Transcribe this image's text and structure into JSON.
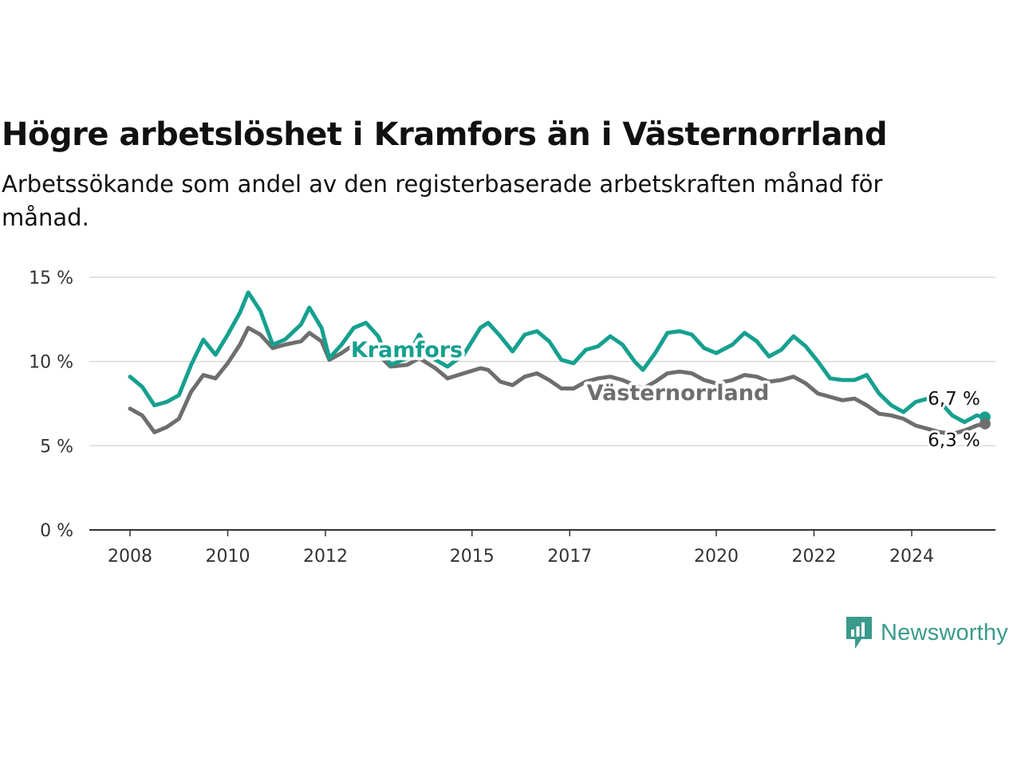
{
  "title": "Högre arbetslöshet i Kramfors än i Västernorrland",
  "subtitle": "Arbetssökande som andel av den registerbaserade arbetskraften månad för månad.",
  "brand": {
    "name": "Newsworthy",
    "icon": "newsworthy-logo-icon",
    "color": "#3a9a8c"
  },
  "chart_data": {
    "type": "line",
    "ylim": [
      0,
      15
    ],
    "xlim": [
      2008,
      2025.75
    ],
    "y_ticks": [
      0,
      5,
      10,
      15
    ],
    "y_tick_labels": [
      "0 %",
      "5 %",
      "10 %",
      "15 %"
    ],
    "x_ticks": [
      2008,
      2010,
      2012,
      2015,
      2017,
      2020,
      2022,
      2024
    ],
    "x_tick_labels": [
      "2008",
      "2010",
      "2012",
      "2015",
      "2017",
      "2020",
      "2022",
      "2024"
    ],
    "grid": true,
    "legend": "inline labels",
    "series": [
      {
        "name": "Kramfors",
        "color": "#16a08f",
        "end_label": "6,7 %",
        "points": [
          [
            2008.0,
            9.1
          ],
          [
            2008.25,
            8.5
          ],
          [
            2008.5,
            7.4
          ],
          [
            2008.75,
            7.6
          ],
          [
            2009.0,
            8.0
          ],
          [
            2009.25,
            9.8
          ],
          [
            2009.5,
            11.3
          ],
          [
            2009.75,
            10.4
          ],
          [
            2010.0,
            11.6
          ],
          [
            2010.25,
            12.9
          ],
          [
            2010.42,
            14.1
          ],
          [
            2010.67,
            13.0
          ],
          [
            2010.92,
            11.0
          ],
          [
            2011.17,
            11.3
          ],
          [
            2011.5,
            12.2
          ],
          [
            2011.67,
            13.2
          ],
          [
            2011.92,
            12.0
          ],
          [
            2012.08,
            10.2
          ],
          [
            2012.33,
            11.0
          ],
          [
            2012.58,
            12.0
          ],
          [
            2012.83,
            12.3
          ],
          [
            2013.08,
            11.5
          ],
          [
            2013.33,
            9.8
          ],
          [
            2013.67,
            10.2
          ],
          [
            2013.92,
            11.6
          ],
          [
            2014.25,
            10.1
          ],
          [
            2014.5,
            9.7
          ],
          [
            2014.83,
            10.4
          ],
          [
            2015.17,
            12.0
          ],
          [
            2015.33,
            12.3
          ],
          [
            2015.58,
            11.5
          ],
          [
            2015.83,
            10.6
          ],
          [
            2016.08,
            11.6
          ],
          [
            2016.33,
            11.8
          ],
          [
            2016.58,
            11.2
          ],
          [
            2016.83,
            10.1
          ],
          [
            2017.08,
            9.9
          ],
          [
            2017.33,
            10.7
          ],
          [
            2017.58,
            10.9
          ],
          [
            2017.83,
            11.5
          ],
          [
            2018.08,
            11.0
          ],
          [
            2018.33,
            10.0
          ],
          [
            2018.5,
            9.5
          ],
          [
            2018.75,
            10.5
          ],
          [
            2019.0,
            11.7
          ],
          [
            2019.25,
            11.8
          ],
          [
            2019.5,
            11.6
          ],
          [
            2019.75,
            10.8
          ],
          [
            2020.0,
            10.5
          ],
          [
            2020.33,
            11.0
          ],
          [
            2020.58,
            11.7
          ],
          [
            2020.83,
            11.2
          ],
          [
            2021.08,
            10.3
          ],
          [
            2021.33,
            10.7
          ],
          [
            2021.58,
            11.5
          ],
          [
            2021.83,
            10.9
          ],
          [
            2022.08,
            10.0
          ],
          [
            2022.33,
            9.0
          ],
          [
            2022.58,
            8.9
          ],
          [
            2022.83,
            8.9
          ],
          [
            2023.08,
            9.2
          ],
          [
            2023.33,
            8.1
          ],
          [
            2023.58,
            7.4
          ],
          [
            2023.83,
            7.0
          ],
          [
            2024.08,
            7.6
          ],
          [
            2024.33,
            7.8
          ],
          [
            2024.58,
            7.6
          ],
          [
            2024.83,
            6.8
          ],
          [
            2025.08,
            6.4
          ],
          [
            2025.33,
            6.8
          ],
          [
            2025.5,
            6.7
          ]
        ]
      },
      {
        "name": "Västernorrland",
        "color": "#6e6e6e",
        "end_label": "6,3 %",
        "points": [
          [
            2008.0,
            7.2
          ],
          [
            2008.25,
            6.8
          ],
          [
            2008.5,
            5.8
          ],
          [
            2008.75,
            6.1
          ],
          [
            2009.0,
            6.6
          ],
          [
            2009.25,
            8.2
          ],
          [
            2009.5,
            9.2
          ],
          [
            2009.75,
            9.0
          ],
          [
            2010.0,
            9.9
          ],
          [
            2010.25,
            11.0
          ],
          [
            2010.42,
            12.0
          ],
          [
            2010.67,
            11.6
          ],
          [
            2010.92,
            10.8
          ],
          [
            2011.17,
            11.0
          ],
          [
            2011.5,
            11.2
          ],
          [
            2011.67,
            11.7
          ],
          [
            2011.92,
            11.2
          ],
          [
            2012.08,
            10.1
          ],
          [
            2012.33,
            10.5
          ],
          [
            2012.58,
            11.0
          ],
          [
            2012.83,
            11.2
          ],
          [
            2013.08,
            10.4
          ],
          [
            2013.33,
            9.7
          ],
          [
            2013.67,
            9.8
          ],
          [
            2013.92,
            10.2
          ],
          [
            2014.25,
            9.6
          ],
          [
            2014.5,
            9.0
          ],
          [
            2014.83,
            9.3
          ],
          [
            2015.17,
            9.6
          ],
          [
            2015.33,
            9.5
          ],
          [
            2015.58,
            8.8
          ],
          [
            2015.83,
            8.6
          ],
          [
            2016.08,
            9.1
          ],
          [
            2016.33,
            9.3
          ],
          [
            2016.58,
            8.9
          ],
          [
            2016.83,
            8.4
          ],
          [
            2017.08,
            8.4
          ],
          [
            2017.33,
            8.8
          ],
          [
            2017.58,
            9.0
          ],
          [
            2017.83,
            9.1
          ],
          [
            2018.08,
            8.9
          ],
          [
            2018.33,
            8.6
          ],
          [
            2018.5,
            8.4
          ],
          [
            2018.75,
            8.8
          ],
          [
            2019.0,
            9.3
          ],
          [
            2019.25,
            9.4
          ],
          [
            2019.5,
            9.3
          ],
          [
            2019.75,
            8.9
          ],
          [
            2020.0,
            8.7
          ],
          [
            2020.33,
            8.9
          ],
          [
            2020.58,
            9.2
          ],
          [
            2020.83,
            9.1
          ],
          [
            2021.08,
            8.8
          ],
          [
            2021.33,
            8.9
          ],
          [
            2021.58,
            9.1
          ],
          [
            2021.83,
            8.7
          ],
          [
            2022.08,
            8.1
          ],
          [
            2022.33,
            7.9
          ],
          [
            2022.58,
            7.7
          ],
          [
            2022.83,
            7.8
          ],
          [
            2023.08,
            7.4
          ],
          [
            2023.33,
            6.9
          ],
          [
            2023.58,
            6.8
          ],
          [
            2023.83,
            6.6
          ],
          [
            2024.08,
            6.2
          ],
          [
            2024.33,
            6.0
          ],
          [
            2024.58,
            5.8
          ],
          [
            2024.83,
            5.7
          ],
          [
            2025.08,
            5.9
          ],
          [
            2025.33,
            6.2
          ],
          [
            2025.5,
            6.3
          ]
        ]
      }
    ]
  }
}
